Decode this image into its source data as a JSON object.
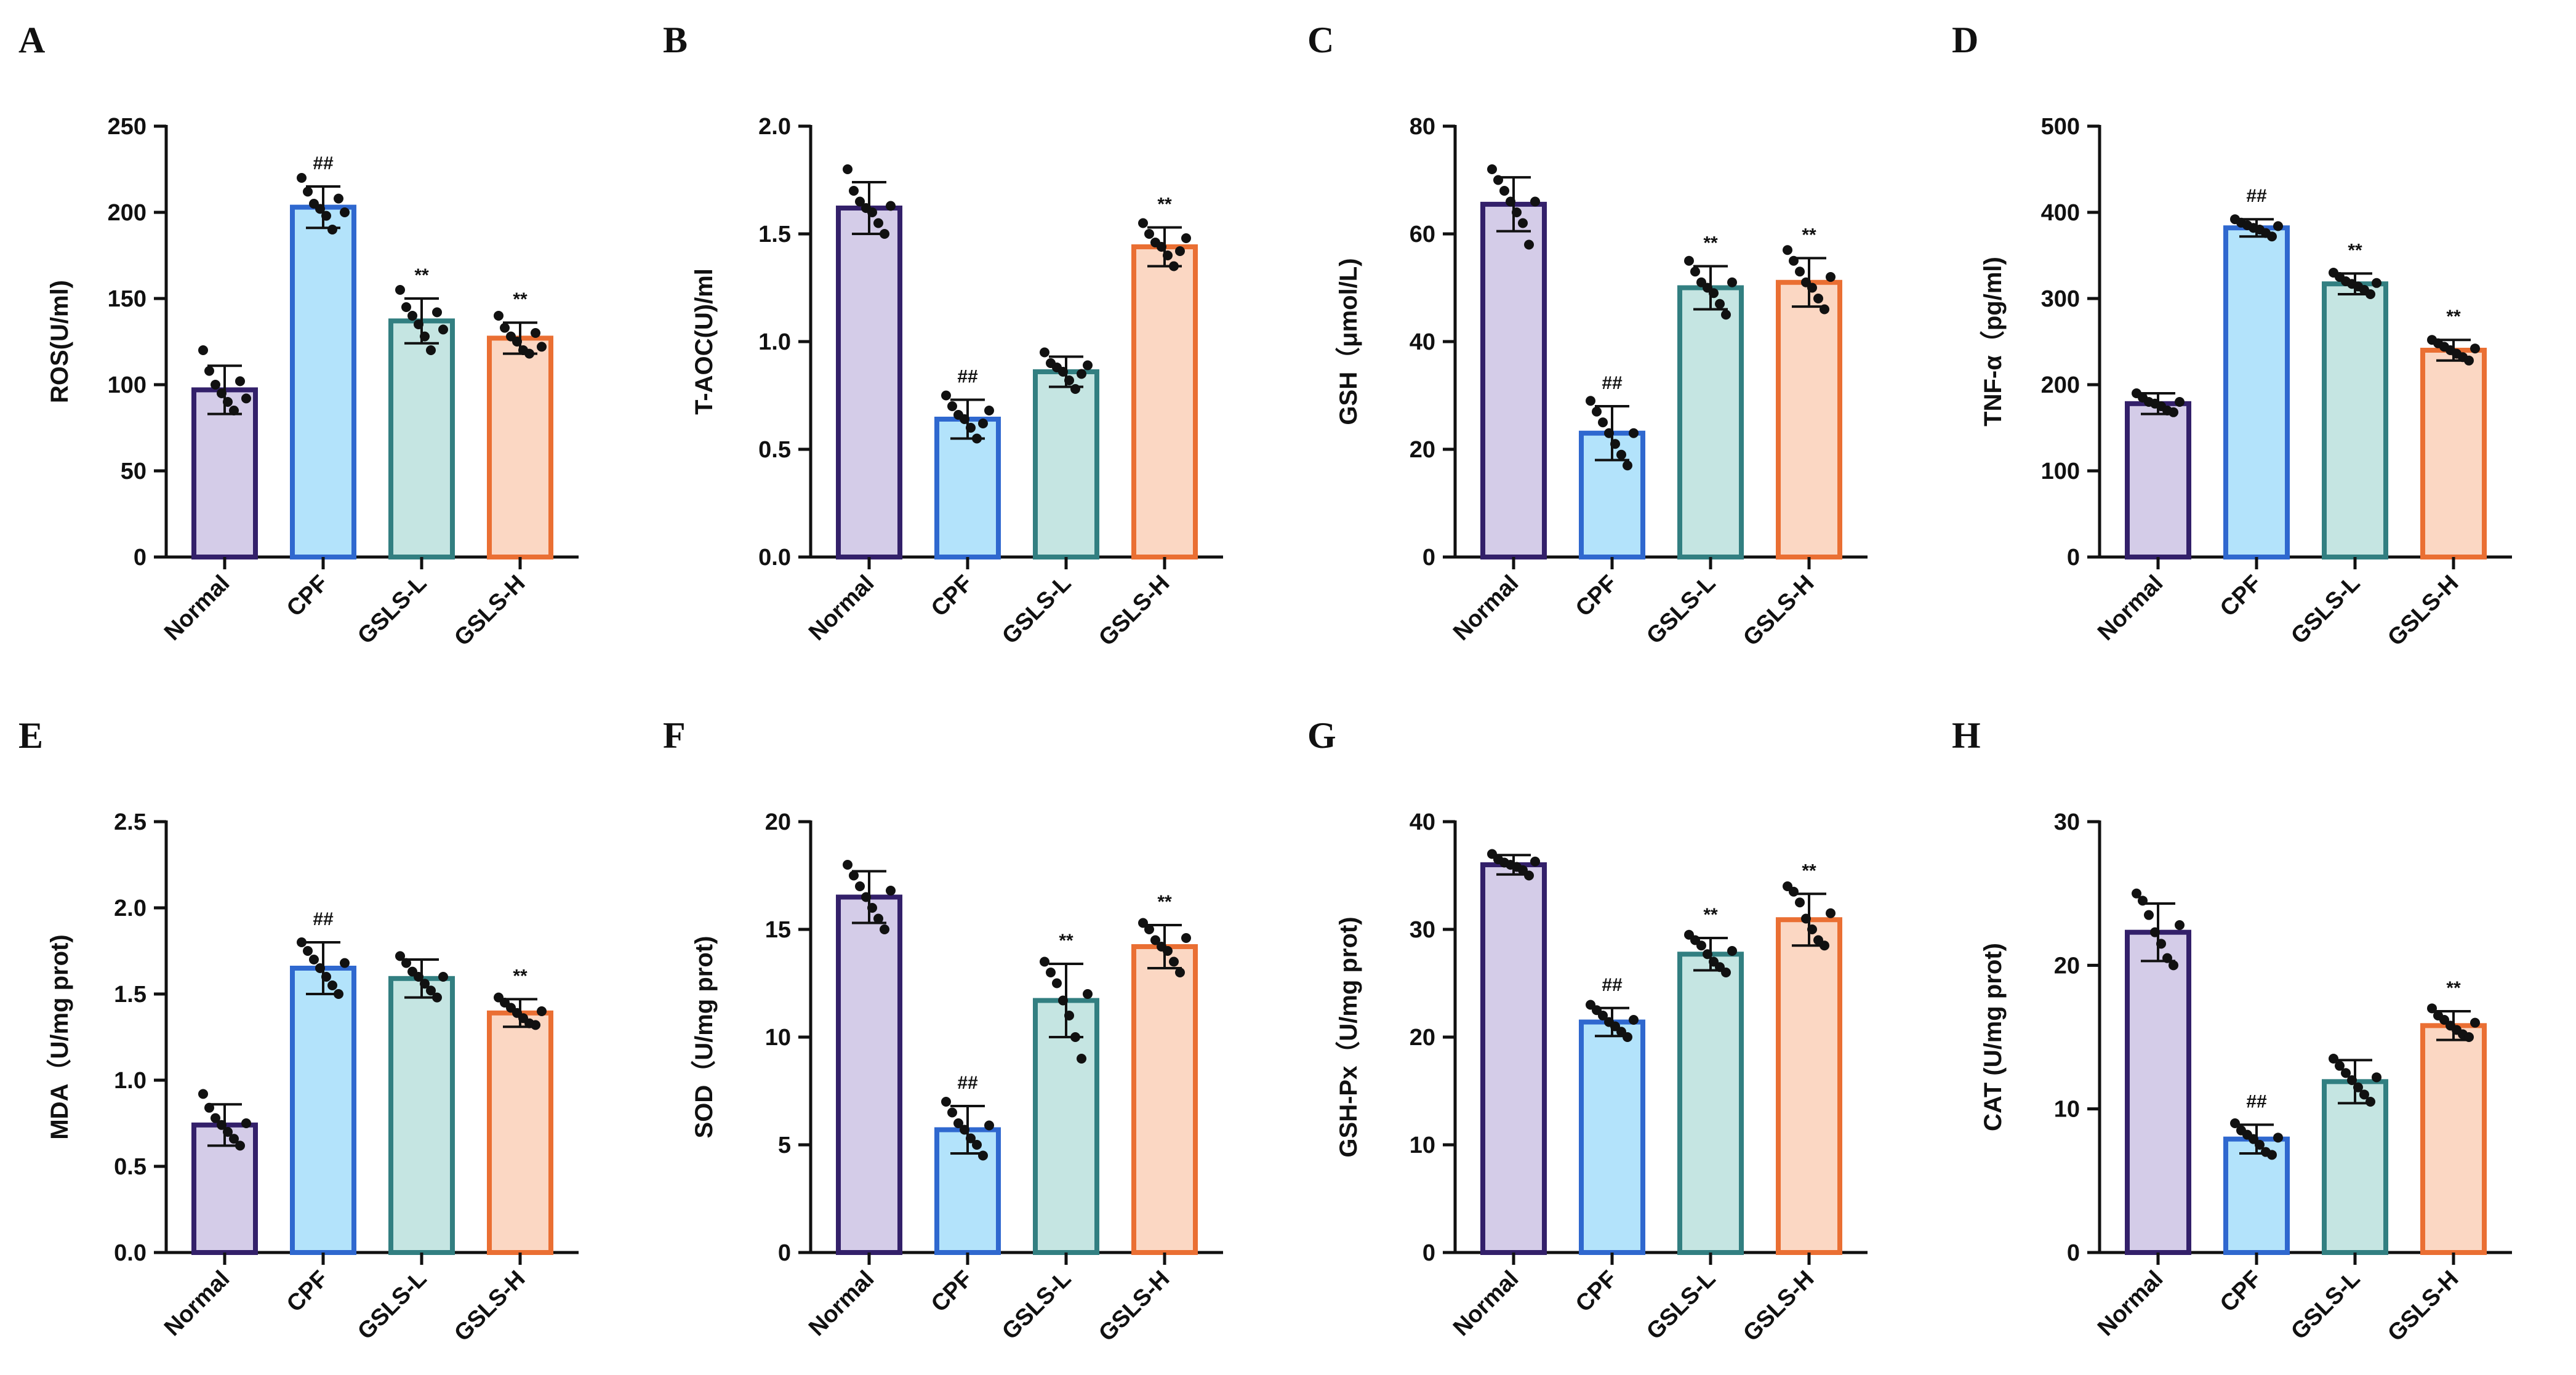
{
  "figure": {
    "group_order": [
      "Normal",
      "CPF",
      "GSLS-L",
      "GSLS-H"
    ],
    "group_colors": {
      "Normal": {
        "fill": "#d4cce8",
        "stroke": "#33206a"
      },
      "CPF": {
        "fill": "#b3e3fb",
        "stroke": "#2f68cf"
      },
      "GSLS-L": {
        "fill": "#c5e5e2",
        "stroke": "#327f81"
      },
      "GSLS-H": {
        "fill": "#fbd7c3",
        "stroke": "#ea6f33"
      }
    }
  },
  "chart_data": [
    {
      "panel": "A",
      "type": "bar",
      "title": "",
      "xlabel": "",
      "ylabel": "ROS(U/ml)",
      "categories": [
        "Normal",
        "CPF",
        "GSLS-L",
        "GSLS-H"
      ],
      "values": [
        97,
        203,
        137,
        127
      ],
      "errors": [
        14,
        12,
        13,
        9
      ],
      "significance": [
        "",
        "##",
        "**",
        "**"
      ],
      "points": [
        [
          120,
          108,
          100,
          95,
          90,
          85,
          102,
          92
        ],
        [
          220,
          212,
          205,
          202,
          198,
          190,
          208,
          200
        ],
        [
          155,
          145,
          140,
          135,
          128,
          120,
          142,
          132
        ],
        [
          140,
          133,
          128,
          125,
          120,
          118,
          130,
          122
        ]
      ],
      "ylim": [
        0,
        250
      ],
      "yticks": [
        0,
        50,
        100,
        150,
        200,
        250
      ],
      "ytick_labels": [
        "0",
        "50",
        "100",
        "150",
        "200",
        "250"
      ]
    },
    {
      "panel": "B",
      "type": "bar",
      "title": "",
      "xlabel": "",
      "ylabel": "T-AOC(U)/ml",
      "categories": [
        "Normal",
        "CPF",
        "GSLS-L",
        "GSLS-H"
      ],
      "values": [
        1.62,
        0.64,
        0.86,
        1.44
      ],
      "errors": [
        0.12,
        0.09,
        0.07,
        0.09
      ],
      "significance": [
        "",
        "##",
        "",
        "**"
      ],
      "points": [
        [
          1.8,
          1.7,
          1.65,
          1.62,
          1.6,
          1.55,
          1.5,
          1.63
        ],
        [
          0.75,
          0.7,
          0.66,
          0.64,
          0.6,
          0.55,
          0.62,
          0.68
        ],
        [
          0.95,
          0.9,
          0.88,
          0.86,
          0.82,
          0.78,
          0.85,
          0.89
        ],
        [
          1.55,
          1.5,
          1.46,
          1.44,
          1.4,
          1.35,
          1.42,
          1.48
        ]
      ],
      "ylim": [
        0,
        2.0
      ],
      "yticks": [
        0,
        0.5,
        1.0,
        1.5,
        2.0
      ],
      "ytick_labels": [
        "0.0",
        "0.5",
        "1.0",
        "1.5",
        "2.0"
      ]
    },
    {
      "panel": "C",
      "type": "bar",
      "title": "",
      "xlabel": "",
      "ylabel": "GSH（μmol/L)",
      "categories": [
        "Normal",
        "CPF",
        "GSLS-L",
        "GSLS-H"
      ],
      "values": [
        65.5,
        23,
        50,
        51
      ],
      "errors": [
        5,
        5,
        4,
        4.5
      ],
      "significance": [
        "",
        "##",
        "**",
        "**"
      ],
      "points": [
        [
          72,
          70,
          68,
          66,
          64,
          62,
          58,
          66
        ],
        [
          29,
          27,
          25,
          23,
          21,
          19,
          17,
          23
        ],
        [
          55,
          53,
          51,
          50,
          49,
          47,
          45,
          51
        ],
        [
          57,
          55,
          53,
          51,
          50,
          48,
          46,
          52
        ]
      ],
      "ylim": [
        0,
        80
      ],
      "yticks": [
        0,
        20,
        40,
        60,
        80
      ],
      "ytick_labels": [
        "0",
        "20",
        "40",
        "60",
        "80"
      ]
    },
    {
      "panel": "D",
      "type": "bar",
      "title": "",
      "xlabel": "",
      "ylabel": "TNF-α（pg/ml)",
      "categories": [
        "Normal",
        "CPF",
        "GSLS-L",
        "GSLS-H"
      ],
      "values": [
        178,
        382,
        317,
        240
      ],
      "errors": [
        12,
        10,
        12,
        12
      ],
      "significance": [
        "",
        "##",
        "**",
        "**"
      ],
      "points": [
        [
          190,
          185,
          180,
          178,
          175,
          170,
          168,
          180
        ],
        [
          392,
          388,
          385,
          382,
          380,
          376,
          372,
          384
        ],
        [
          330,
          325,
          320,
          317,
          314,
          310,
          305,
          318
        ],
        [
          252,
          248,
          244,
          240,
          236,
          232,
          228,
          242
        ]
      ],
      "ylim": [
        0,
        500
      ],
      "yticks": [
        0,
        100,
        200,
        300,
        400,
        500
      ],
      "ytick_labels": [
        "0",
        "100",
        "200",
        "300",
        "400",
        "500"
      ]
    },
    {
      "panel": "E",
      "type": "bar",
      "title": "",
      "xlabel": "",
      "ylabel": "MDA（U/mg prot)",
      "categories": [
        "Normal",
        "CPF",
        "GSLS-L",
        "GSLS-H"
      ],
      "values": [
        0.74,
        1.65,
        1.59,
        1.39
      ],
      "errors": [
        0.12,
        0.15,
        0.11,
        0.08
      ],
      "significance": [
        "",
        "##",
        "",
        "**"
      ],
      "points": [
        [
          0.92,
          0.84,
          0.78,
          0.74,
          0.7,
          0.66,
          0.62,
          0.75
        ],
        [
          1.8,
          1.75,
          1.7,
          1.65,
          1.6,
          1.55,
          1.5,
          1.68
        ],
        [
          1.72,
          1.68,
          1.63,
          1.6,
          1.56,
          1.52,
          1.48,
          1.6
        ],
        [
          1.48,
          1.45,
          1.42,
          1.39,
          1.36,
          1.33,
          1.32,
          1.4
        ]
      ],
      "ylim": [
        0,
        2.5
      ],
      "yticks": [
        0,
        0.5,
        1.0,
        1.5,
        2.0,
        2.5
      ],
      "ytick_labels": [
        "0.0",
        "0.5",
        "1.0",
        "1.5",
        "2.0",
        "2.5"
      ]
    },
    {
      "panel": "F",
      "type": "bar",
      "title": "",
      "xlabel": "",
      "ylabel": "SOD（U/mg prot)",
      "categories": [
        "Normal",
        "CPF",
        "GSLS-L",
        "GSLS-H"
      ],
      "values": [
        16.5,
        5.7,
        11.7,
        14.2
      ],
      "errors": [
        1.2,
        1.1,
        1.7,
        1.0
      ],
      "significance": [
        "",
        "##",
        "**",
        "**"
      ],
      "points": [
        [
          18,
          17.5,
          17,
          16.5,
          16,
          15.5,
          15,
          16.8
        ],
        [
          7,
          6.5,
          6,
          5.7,
          5.3,
          5,
          4.5,
          5.9
        ],
        [
          13.5,
          13,
          12.5,
          11.7,
          11,
          10,
          9,
          12
        ],
        [
          15.3,
          15,
          14.5,
          14.2,
          14,
          13.5,
          13,
          14.6
        ]
      ],
      "ylim": [
        0,
        20
      ],
      "yticks": [
        0,
        5,
        10,
        15,
        20
      ],
      "ytick_labels": [
        "0",
        "5",
        "10",
        "15",
        "20"
      ]
    },
    {
      "panel": "G",
      "type": "bar",
      "title": "",
      "xlabel": "",
      "ylabel": "GSH-Px（U/mg prot)",
      "categories": [
        "Normal",
        "CPF",
        "GSLS-L",
        "GSLS-H"
      ],
      "values": [
        36,
        21.4,
        27.7,
        30.9
      ],
      "errors": [
        0.9,
        1.3,
        1.5,
        2.4
      ],
      "significance": [
        "",
        "##",
        "**",
        "**"
      ],
      "points": [
        [
          37,
          36.5,
          36.2,
          36,
          35.8,
          35.5,
          35,
          36.3
        ],
        [
          23,
          22.5,
          22,
          21.4,
          21,
          20.5,
          20,
          21.6
        ],
        [
          29.5,
          29,
          28.5,
          27.7,
          27,
          26.5,
          26,
          28
        ],
        [
          34,
          33.5,
          32.5,
          31,
          30,
          29,
          28.5,
          31.5
        ]
      ],
      "ylim": [
        0,
        40
      ],
      "yticks": [
        0,
        10,
        20,
        30,
        40
      ],
      "ytick_labels": [
        "0",
        "10",
        "20",
        "30",
        "40"
      ]
    },
    {
      "panel": "H",
      "type": "bar",
      "title": "",
      "xlabel": "",
      "ylabel": "CAT (U/mg prot)",
      "categories": [
        "Normal",
        "CPF",
        "GSLS-L",
        "GSLS-H"
      ],
      "values": [
        22.3,
        7.9,
        11.9,
        15.8
      ],
      "errors": [
        2.0,
        1.0,
        1.5,
        1.0
      ],
      "significance": [
        "",
        "##",
        "",
        "**"
      ],
      "points": [
        [
          25,
          24.5,
          23.5,
          22.3,
          21.5,
          20.5,
          20,
          22.8
        ],
        [
          9,
          8.5,
          8.2,
          7.9,
          7.5,
          7,
          6.8,
          8
        ],
        [
          13.5,
          13,
          12.5,
          12,
          11.5,
          11,
          10.5,
          12.2
        ],
        [
          17,
          16.5,
          16.2,
          15.8,
          15.5,
          15.2,
          15,
          16
        ]
      ],
      "ylim": [
        0,
        30
      ],
      "yticks": [
        0,
        10,
        20,
        30
      ],
      "ytick_labels": [
        "0",
        "10",
        "20",
        "30"
      ]
    }
  ]
}
